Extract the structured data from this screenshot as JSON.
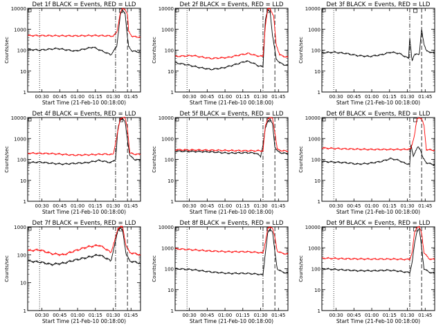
{
  "figure": {
    "xlabel": "Start Time (21-Feb-10 00:18:00)",
    "ylabel": "Counts/sec",
    "colors": {
      "events": "#000000",
      "lld": "#ff0000"
    }
  },
  "chart_data": [
    {
      "type": "line",
      "title": "Det 1f BLACK = Events, RED = LLD",
      "ylim": [
        1,
        10000
      ],
      "yscale": "log",
      "yticks": [
        "1",
        "10",
        "100",
        "1000",
        "10000"
      ],
      "xticks": [
        "00:30",
        "00:45",
        "01:00",
        "01:15",
        "01:30",
        "01:45"
      ],
      "x_range_min": [
        0,
        95
      ],
      "series": [
        {
          "name": "Events",
          "x": [
            0,
            10,
            25,
            40,
            55,
            65,
            70,
            75,
            78,
            80,
            82,
            84,
            85,
            88,
            92,
            95
          ],
          "y": [
            110,
            100,
            120,
            90,
            140,
            80,
            60,
            150,
            5000,
            8000,
            6000,
            400,
            150,
            90,
            85,
            80
          ]
        },
        {
          "name": "LLD",
          "x": [
            0,
            20,
            40,
            55,
            65,
            72,
            75,
            78,
            80,
            82,
            84,
            85,
            88,
            92,
            95
          ],
          "y": [
            500,
            490,
            480,
            500,
            490,
            470,
            700,
            6000,
            10000,
            9000,
            5000,
            800,
            450,
            430,
            420
          ]
        }
      ]
    },
    {
      "type": "line",
      "title": "Det 2f BLACK = Events, RED = LLD",
      "ylim": [
        1,
        10000
      ],
      "yscale": "log",
      "yticks": [
        "1",
        "10",
        "100",
        "1000",
        "10000"
      ],
      "xticks": [
        "00:30",
        "00:45",
        "01:00",
        "01:15",
        "01:30",
        "01:45"
      ],
      "x_range_min": [
        0,
        95
      ],
      "series": [
        {
          "name": "Events",
          "x": [
            0,
            10,
            20,
            30,
            40,
            50,
            60,
            65,
            70,
            74,
            76,
            78,
            80,
            82,
            85,
            88,
            92,
            95
          ],
          "y": [
            25,
            20,
            15,
            12,
            14,
            20,
            30,
            25,
            18,
            16,
            3000,
            8000,
            7000,
            500,
            40,
            25,
            20,
            18
          ]
        },
        {
          "name": "LLD",
          "x": [
            0,
            15,
            30,
            45,
            55,
            62,
            68,
            74,
            76,
            78,
            80,
            83,
            85,
            88,
            92,
            95
          ],
          "y": [
            50,
            55,
            40,
            45,
            60,
            70,
            55,
            50,
            1500,
            9000,
            10000,
            4000,
            200,
            60,
            50,
            45
          ]
        }
      ]
    },
    {
      "type": "line",
      "title": "Det 3f BLACK = Events, RED = LLD",
      "ylim": [
        1,
        10000
      ],
      "yscale": "log",
      "yticks": [
        "1",
        "10",
        "100",
        "1000",
        "10000"
      ],
      "xticks": [
        "00:30",
        "00:45",
        "01:00",
        "01:15",
        "01:30",
        "01:45"
      ],
      "x_range_min": [
        0,
        95
      ],
      "series": [
        {
          "name": "Events",
          "x": [
            0,
            10,
            20,
            30,
            40,
            50,
            58,
            65,
            70,
            73,
            74,
            76,
            78,
            80,
            82,
            84,
            86,
            88,
            92,
            95
          ],
          "y": [
            75,
            80,
            70,
            55,
            50,
            60,
            80,
            70,
            50,
            40,
            400,
            30,
            60,
            70,
            60,
            1000,
            200,
            90,
            80,
            70
          ]
        }
      ]
    },
    {
      "type": "line",
      "title": "Det 4f BLACK = Events, RED = LLD",
      "ylim": [
        1,
        10000
      ],
      "yscale": "log",
      "yticks": [
        "1",
        "10",
        "100",
        "1000",
        "10000"
      ],
      "xticks": [
        "00:30",
        "00:45",
        "01:00",
        "01:15",
        "01:30",
        "01:45"
      ],
      "x_range_min": [
        0,
        95
      ],
      "series": [
        {
          "name": "Events",
          "x": [
            0,
            10,
            20,
            30,
            40,
            50,
            60,
            65,
            70,
            74,
            76,
            78,
            80,
            82,
            84,
            86,
            90,
            95
          ],
          "y": [
            70,
            75,
            65,
            60,
            65,
            70,
            90,
            80,
            70,
            100,
            3000,
            8000,
            9000,
            6000,
            900,
            150,
            100,
            90
          ]
        },
        {
          "name": "LLD",
          "x": [
            0,
            20,
            40,
            55,
            65,
            72,
            75,
            78,
            80,
            82,
            84,
            86,
            90,
            95
          ],
          "y": [
            200,
            190,
            160,
            170,
            180,
            170,
            1200,
            9000,
            10000,
            9500,
            3000,
            200,
            180,
            170
          ]
        }
      ]
    },
    {
      "type": "line",
      "title": "Det 5f BLACK = Events, RED = LLD",
      "ylim": [
        1,
        10000
      ],
      "yscale": "log",
      "yticks": [
        "1",
        "10",
        "100",
        "1000",
        "10000"
      ],
      "xticks": [
        "00:30",
        "00:45",
        "01:00",
        "01:15",
        "01:30",
        "01:45"
      ],
      "x_range_min": [
        0,
        95
      ],
      "series": [
        {
          "name": "Events",
          "x": [
            0,
            15,
            30,
            45,
            60,
            68,
            72,
            74,
            76,
            78,
            80,
            82,
            84,
            86,
            90,
            95
          ],
          "y": [
            250,
            240,
            230,
            200,
            210,
            200,
            140,
            500,
            3000,
            7000,
            8000,
            5000,
            400,
            250,
            200,
            190
          ]
        },
        {
          "name": "LLD",
          "x": [
            0,
            20,
            40,
            60,
            70,
            74,
            76,
            78,
            80,
            82,
            84,
            86,
            90,
            95
          ],
          "y": [
            290,
            280,
            270,
            260,
            260,
            260,
            4000,
            9000,
            10000,
            9000,
            2000,
            300,
            260,
            250
          ]
        }
      ]
    },
    {
      "type": "line",
      "title": "Det 6f BLACK = Events, RED = LLD",
      "ylim": [
        1,
        10000
      ],
      "yscale": "log",
      "yticks": [
        "1",
        "10",
        "100",
        "1000",
        "10000"
      ],
      "xticks": [
        "00:30",
        "00:45",
        "01:00",
        "01:15",
        "01:30",
        "01:45"
      ],
      "x_range_min": [
        0,
        95
      ],
      "series": [
        {
          "name": "Events",
          "x": [
            0,
            10,
            20,
            30,
            40,
            50,
            58,
            65,
            70,
            74,
            75,
            77,
            79,
            81,
            83,
            85,
            88,
            92,
            95
          ],
          "y": [
            80,
            75,
            70,
            60,
            65,
            80,
            110,
            90,
            65,
            60,
            500,
            150,
            250,
            400,
            300,
            120,
            70,
            60,
            55
          ]
        },
        {
          "name": "LLD",
          "x": [
            0,
            20,
            40,
            60,
            70,
            75,
            78,
            80,
            82,
            84,
            86,
            88,
            92,
            95
          ],
          "y": [
            350,
            320,
            300,
            300,
            300,
            320,
            1500,
            8000,
            10000,
            9000,
            4000,
            300,
            280,
            270
          ]
        }
      ]
    },
    {
      "type": "line",
      "title": "Det 7f BLACK = Events, RED = LLD",
      "ylim": [
        1,
        1000
      ],
      "yscale": "log",
      "yticks": [
        "1",
        "10",
        "100",
        "1000"
      ],
      "xticks": [
        "00:30",
        "00:45",
        "01:00",
        "01:15",
        "01:30",
        "01:45"
      ],
      "x_range_min": [
        0,
        95
      ],
      "series": [
        {
          "name": "Events",
          "x": [
            0,
            10,
            20,
            30,
            40,
            50,
            60,
            65,
            70,
            74,
            76,
            78,
            80,
            83,
            86,
            90,
            95
          ],
          "y": [
            60,
            55,
            45,
            50,
            65,
            80,
            100,
            80,
            60,
            300,
            800,
            900,
            700,
            100,
            60,
            55,
            50
          ]
        },
        {
          "name": "LLD",
          "x": [
            0,
            10,
            20,
            30,
            40,
            50,
            60,
            65,
            70,
            74,
            76,
            78,
            80,
            83,
            86,
            90,
            95
          ],
          "y": [
            140,
            150,
            110,
            100,
            140,
            190,
            220,
            170,
            120,
            400,
            900,
            1000,
            950,
            200,
            120,
            110,
            100
          ]
        }
      ]
    },
    {
      "type": "line",
      "title": "Det 8f BLACK = Events, RED = LLD",
      "ylim": [
        1,
        10000
      ],
      "yscale": "log",
      "yticks": [
        "1",
        "10",
        "100",
        "1000",
        "10000"
      ],
      "xticks": [
        "00:30",
        "00:45",
        "01:00",
        "01:15",
        "01:30",
        "01:45"
      ],
      "x_range_min": [
        0,
        95
      ],
      "series": [
        {
          "name": "Events",
          "x": [
            0,
            15,
            30,
            45,
            60,
            70,
            74,
            76,
            78,
            80,
            82,
            84,
            86,
            90,
            95
          ],
          "y": [
            100,
            90,
            70,
            60,
            60,
            55,
            50,
            600,
            5000,
            8000,
            6000,
            600,
            100,
            70,
            60
          ]
        },
        {
          "name": "LLD",
          "x": [
            0,
            15,
            30,
            45,
            60,
            70,
            74,
            76,
            78,
            80,
            82,
            84,
            86,
            90,
            95
          ],
          "y": [
            900,
            800,
            700,
            650,
            650,
            600,
            550,
            2000,
            8000,
            10000,
            9000,
            3000,
            700,
            550,
            500
          ]
        }
      ]
    },
    {
      "type": "line",
      "title": "Det 9f BLACK = Events, RED = LLD",
      "ylim": [
        1,
        10000
      ],
      "yscale": "log",
      "yticks": [
        "1",
        "10",
        "100",
        "1000",
        "10000"
      ],
      "xticks": [
        "00:30",
        "00:45",
        "01:00",
        "01:15",
        "01:30",
        "01:45"
      ],
      "x_range_min": [
        0,
        95
      ],
      "series": [
        {
          "name": "Events",
          "x": [
            0,
            15,
            30,
            45,
            55,
            62,
            70,
            74,
            76,
            78,
            80,
            82,
            84,
            86,
            90,
            95
          ],
          "y": [
            100,
            90,
            80,
            80,
            85,
            80,
            70,
            65,
            200,
            1500,
            6000,
            8000,
            1000,
            100,
            70,
            60
          ]
        },
        {
          "name": "LLD",
          "x": [
            0,
            20,
            40,
            60,
            70,
            74,
            76,
            78,
            80,
            82,
            84,
            86,
            90,
            95
          ],
          "y": [
            320,
            300,
            290,
            290,
            280,
            280,
            600,
            5000,
            10000,
            10000,
            5000,
            600,
            300,
            280
          ]
        }
      ]
    }
  ]
}
